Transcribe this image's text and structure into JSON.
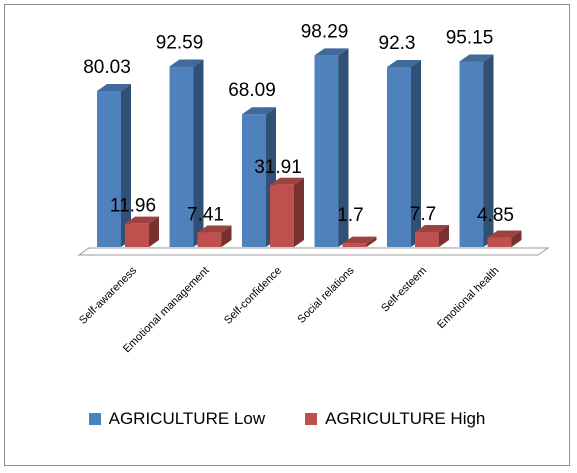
{
  "chart_data": {
    "type": "bar",
    "categories": [
      "Self-awareness",
      "Emotional management",
      "Self-confidence",
      "Social relations",
      "Self-esteem",
      "Emotional health"
    ],
    "series": [
      {
        "name": "AGRICULTURE Low",
        "values": [
          80.03,
          92.59,
          68.09,
          98.29,
          92.3,
          95.15
        ],
        "color": "#4f81bd"
      },
      {
        "name": "AGRICULTURE High",
        "values": [
          11.96,
          7.41,
          31.91,
          1.7,
          7.7,
          4.85
        ],
        "color": "#c0504d"
      }
    ],
    "ylim": [
      0,
      100
    ],
    "grid": false,
    "legend_position": "bottom",
    "style": "3d-clustered-column"
  }
}
